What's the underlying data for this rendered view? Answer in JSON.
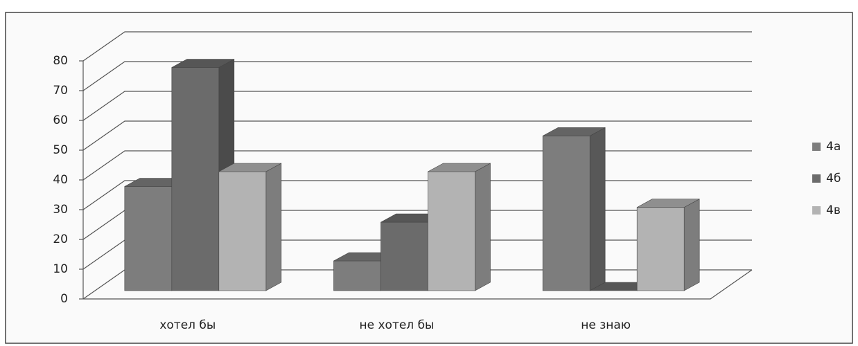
{
  "chart_data": {
    "type": "bar3d",
    "categories": [
      "хотел бы",
      "не хотел бы",
      "не знаю"
    ],
    "series": [
      {
        "name": "4а",
        "color": "#7d7d7d",
        "values": [
          35,
          10,
          52
        ]
      },
      {
        "name": "4б",
        "color": "#6b6b6b",
        "values": [
          75,
          23,
          0
        ]
      },
      {
        "name": "4в",
        "color": "#b3b3b3",
        "values": [
          40,
          40,
          28
        ]
      }
    ],
    "ylim": [
      0,
      80
    ],
    "yticks": [
      0,
      10,
      20,
      30,
      40,
      50,
      60,
      70,
      80
    ],
    "grid": true,
    "legend": "right"
  }
}
